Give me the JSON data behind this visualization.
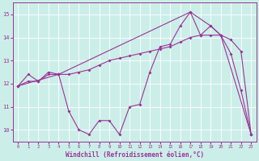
{
  "xlabel": "Windchill (Refroidissement éolien,°C)",
  "bg_color": "#cceee8",
  "line_color": "#993399",
  "grid_color": "#aadddd",
  "xlim": [
    -0.5,
    23.5
  ],
  "ylim": [
    9.5,
    15.5
  ],
  "xticks": [
    0,
    1,
    2,
    3,
    4,
    5,
    6,
    7,
    8,
    9,
    10,
    11,
    12,
    13,
    14,
    15,
    16,
    17,
    18,
    19,
    20,
    21,
    22,
    23
  ],
  "yticks": [
    10,
    11,
    12,
    13,
    14,
    15
  ],
  "line1_x": [
    0,
    1,
    2,
    3,
    4,
    5,
    6,
    7,
    8,
    9,
    10,
    11,
    12,
    13,
    14,
    15,
    16,
    17,
    18,
    19,
    20,
    21,
    22,
    23
  ],
  "line1_y": [
    11.9,
    12.4,
    12.1,
    12.5,
    12.4,
    10.8,
    10.0,
    9.8,
    10.4,
    10.4,
    9.8,
    11.0,
    11.1,
    12.5,
    13.6,
    13.7,
    14.5,
    15.1,
    14.1,
    14.5,
    14.1,
    13.3,
    11.7,
    9.8
  ],
  "line2_x": [
    0,
    1,
    2,
    3,
    4,
    5,
    6,
    7,
    8,
    9,
    10,
    11,
    12,
    13,
    14,
    15,
    16,
    17,
    18,
    19,
    20,
    21,
    22,
    23
  ],
  "line2_y": [
    11.9,
    12.1,
    12.1,
    12.4,
    12.4,
    12.4,
    12.5,
    12.6,
    12.8,
    13.0,
    13.1,
    13.2,
    13.3,
    13.4,
    13.5,
    13.6,
    13.8,
    14.0,
    14.1,
    14.1,
    14.1,
    13.9,
    13.4,
    9.8
  ],
  "line3_x": [
    0,
    4,
    17,
    19,
    20,
    23
  ],
  "line3_y": [
    11.9,
    12.4,
    15.1,
    14.5,
    14.1,
    9.8
  ]
}
